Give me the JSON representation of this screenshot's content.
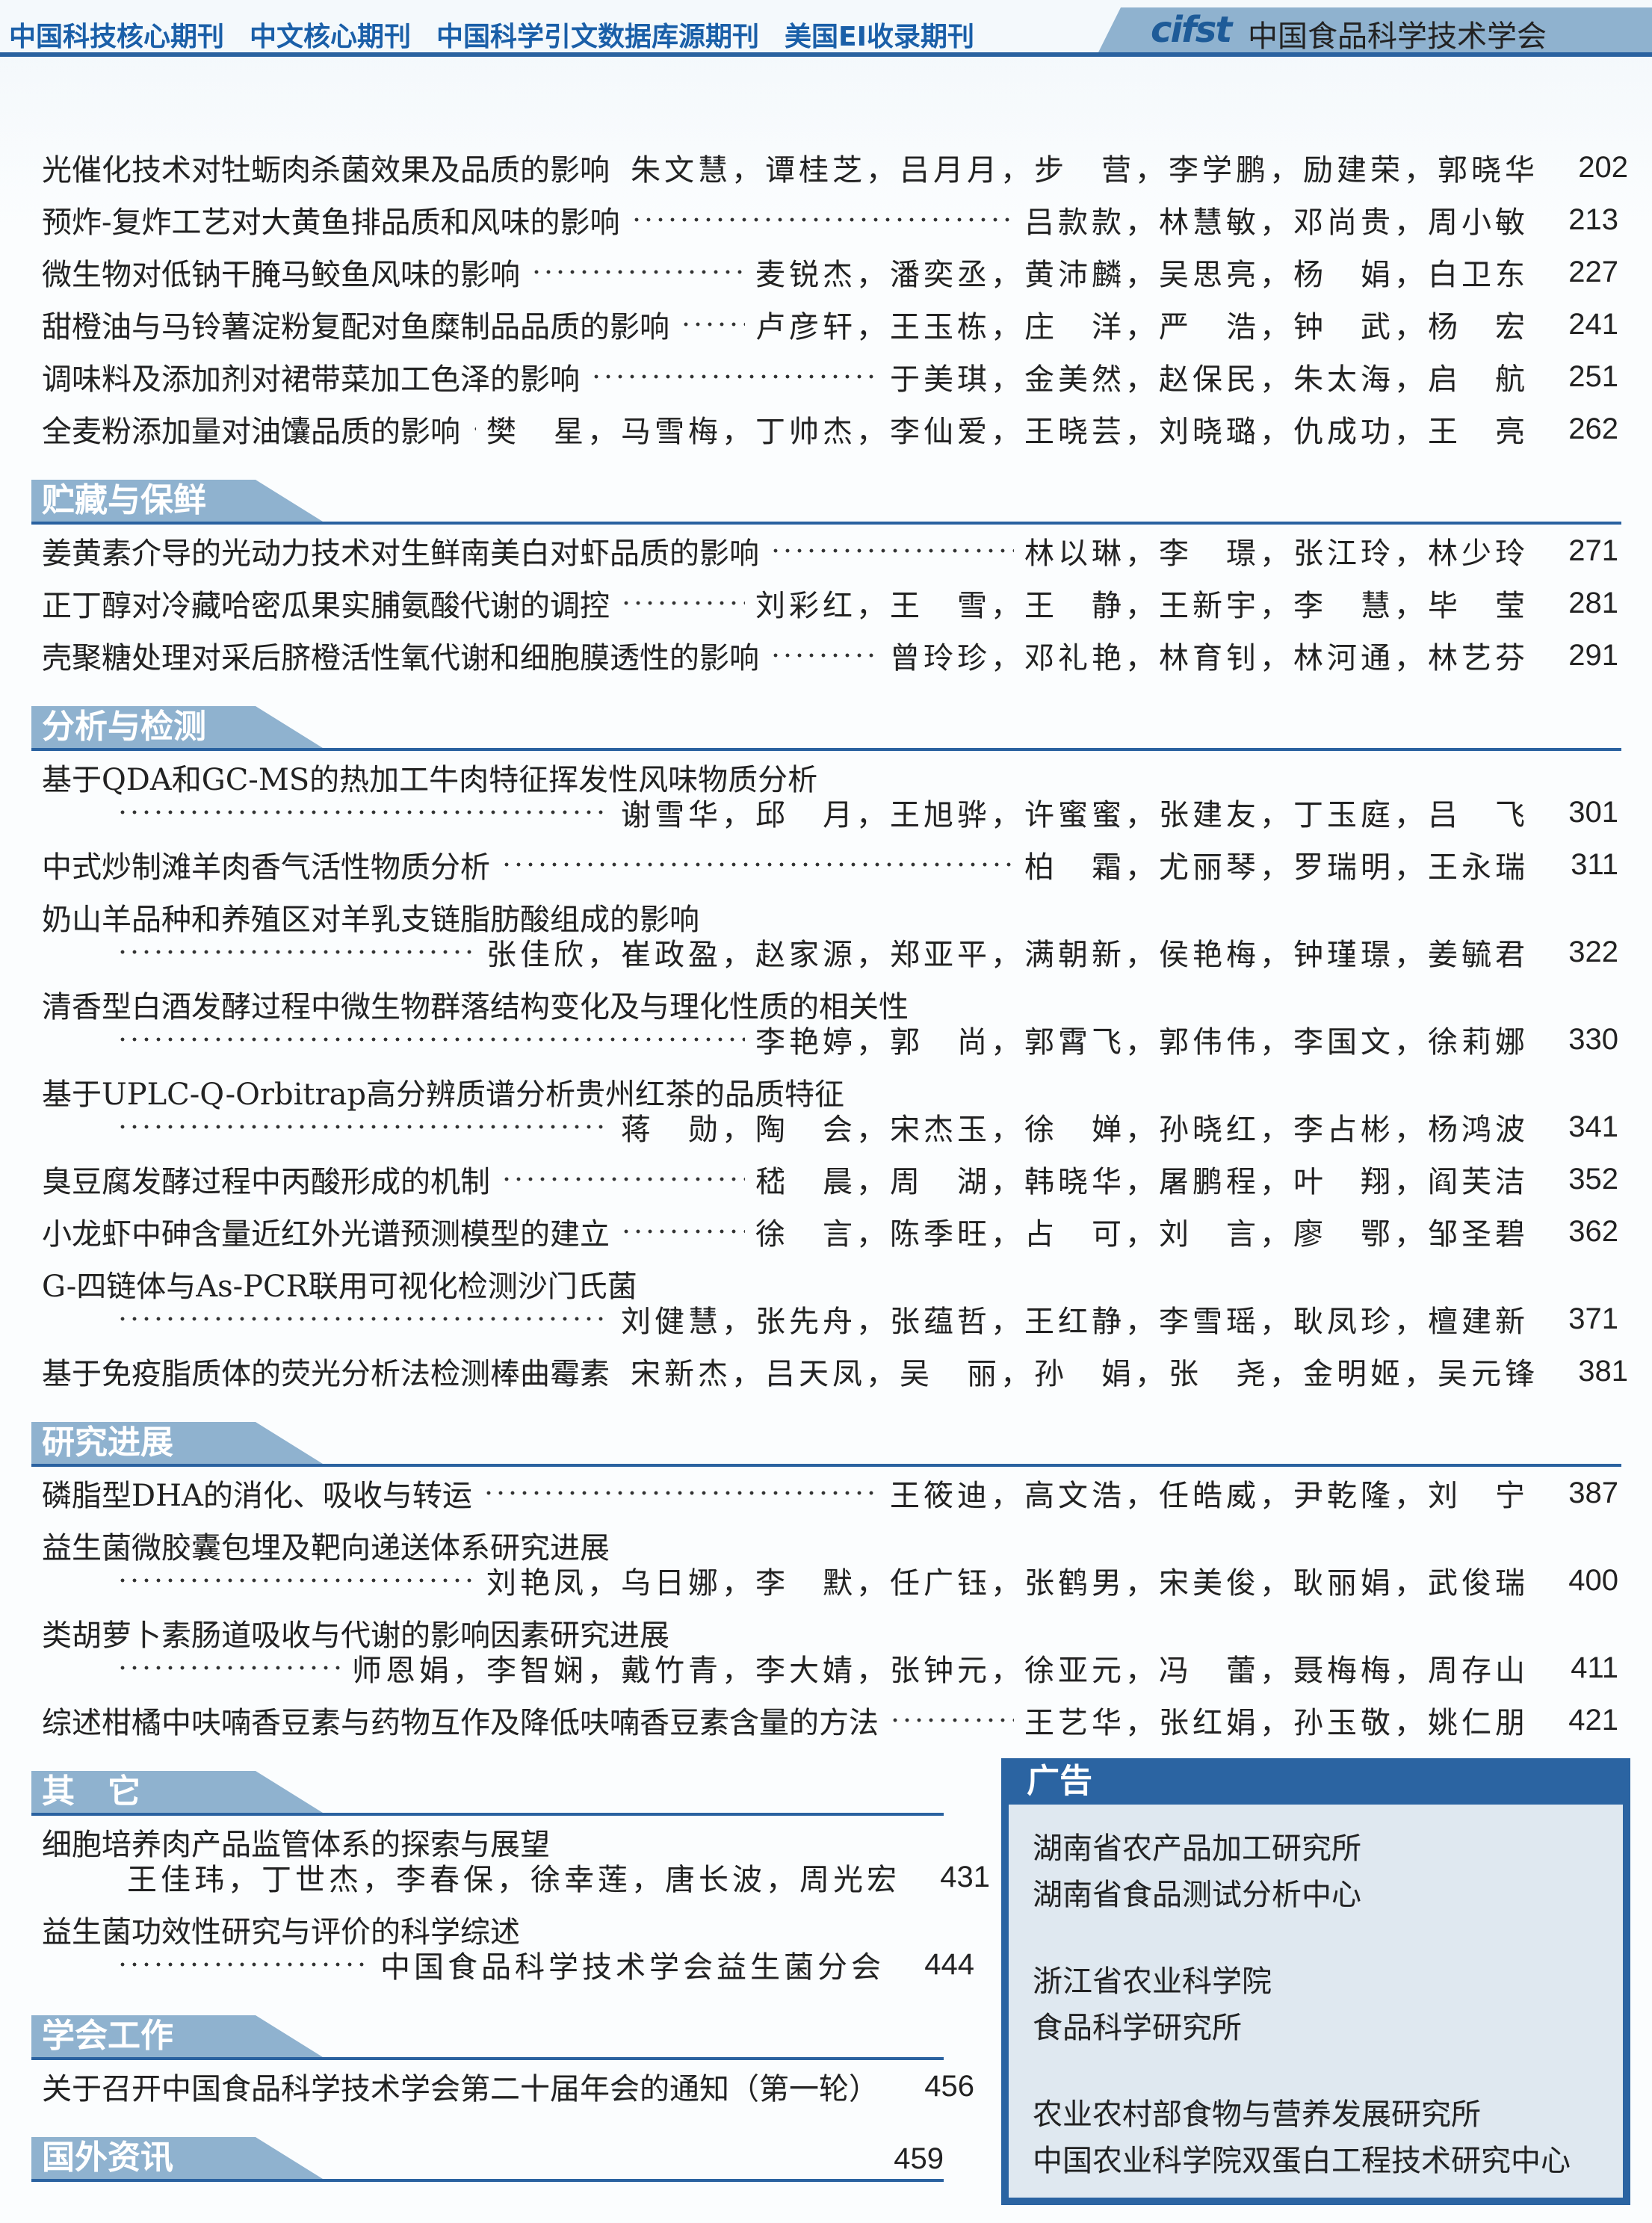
{
  "header": {
    "journals": [
      "中国科技核心期刊",
      "中文核心期刊",
      "中国科学引文数据库源期刊",
      "美国EI收录期刊"
    ],
    "logo": "cifst",
    "society": "中国食品科学技术学会"
  },
  "colors": {
    "accent": "#2a62a0",
    "tab": "#8fb2cf",
    "journal_text": "#1a5fa8"
  },
  "sections": [
    {
      "title": "",
      "entries": [
        {
          "title": "光催化技术对牡蛎肉杀菌效果及品质的影响",
          "authors": "朱文慧，谭桂芝，吕月月，步　营，李学鹏，励建荣，郭晓华",
          "page": "202"
        },
        {
          "title": "预炸-复炸工艺对大黄鱼排品质和风味的影响",
          "authors": "吕款款，林慧敏，邓尚贵，周小敏",
          "page": "213"
        },
        {
          "title": "微生物对低钠干腌马鲛鱼风味的影响",
          "authors": "麦锐杰，潘奕丞，黄沛麟，吴思亮，杨　娟，白卫东",
          "page": "227"
        },
        {
          "title": "甜橙油与马铃薯淀粉复配对鱼糜制品品质的影响",
          "authors": "卢彦轩，王玉栋，庄　洋，严　浩，钟　武，杨　宏",
          "page": "241"
        },
        {
          "title": "调味料及添加剂对裙带菜加工色泽的影响",
          "authors": "于美琪，金美然，赵保民，朱太海，启　航",
          "page": "251"
        },
        {
          "title": "全麦粉添加量对油馕品质的影响",
          "authors": "樊　星，马雪梅，丁帅杰，李仙爱，王晓芸，刘晓璐，仇成功，王　亮",
          "page": "262"
        }
      ]
    },
    {
      "title": "贮藏与保鲜",
      "entries": [
        {
          "title": "姜黄素介导的光动力技术对生鲜南美白对虾品质的影响",
          "authors": "林以琳，李　璟，张江玲，林少玲",
          "page": "271"
        },
        {
          "title": "正丁醇对冷藏哈密瓜果实脯氨酸代谢的调控",
          "authors": "刘彩红，王　雪，王　静，王新宇，李　慧，毕　莹",
          "page": "281"
        },
        {
          "title": "壳聚糖处理对采后脐橙活性氧代谢和细胞膜透性的影响",
          "authors": "曾玲珍，邓礼艳，林育钊，林河通，林艺芬",
          "page": "291"
        }
      ]
    },
    {
      "title": "分析与检测",
      "entries": [
        {
          "title": "基于QDA和GC-MS的热加工牛肉特征挥发性风味物质分析",
          "authors": "谢雪华，邱　月，王旭骅，许蜜蜜，张建友，丁玉庭，吕　飞",
          "page": "301"
        },
        {
          "title": "中式炒制滩羊肉香气活性物质分析",
          "authors": "柏　霜，尤丽琴，罗瑞明，王永瑞",
          "page": "311"
        },
        {
          "title": "奶山羊品种和养殖区对羊乳支链脂肪酸组成的影响",
          "authors": "张佳欣，崔政盈，赵家源，郑亚平，满朝新，侯艳梅，钟瑾璟，姜毓君",
          "page": "322"
        },
        {
          "title": "清香型白酒发酵过程中微生物群落结构变化及与理化性质的相关性",
          "authors": "李艳婷，郭　尚，郭霄飞，郭伟伟，李国文，徐莉娜",
          "page": "330"
        },
        {
          "title": "基于UPLC-Q-Orbitrap高分辨质谱分析贵州红茶的品质特征",
          "authors": "蒋　勋，陶　会，宋杰玉，徐　婵，孙晓红，李占彬，杨鸿波",
          "page": "341"
        },
        {
          "title": "臭豆腐发酵过程中丙酸形成的机制",
          "authors": "嵇　晨，周　湖，韩晓华，屠鹏程，叶　翔，阎芙洁",
          "page": "352"
        },
        {
          "title": "小龙虾中砷含量近红外光谱预测模型的建立",
          "authors": "徐　言，陈季旺，占　可，刘　言，廖　鄂，邹圣碧",
          "page": "362"
        },
        {
          "title": "G-四链体与As-PCR联用可视化检测沙门氏菌",
          "authors": "刘健慧，张先舟，张蕴哲，王红静，李雪瑶，耿凤珍，檀建新",
          "page": "371"
        },
        {
          "title": "基于免疫脂质体的荧光分析法检测棒曲霉素",
          "authors": "宋新杰，吕天凤，吴　丽，孙　娟，张　尧，金明姬，吴元锋",
          "page": "381"
        }
      ]
    },
    {
      "title": "研究进展",
      "entries": [
        {
          "title": "磷脂型DHA的消化、吸收与转运",
          "authors": "王筱迪，高文浩，任皓威，尹乾隆，刘　宁",
          "page": "387"
        },
        {
          "title": "益生菌微胶囊包埋及靶向递送体系研究进展",
          "authors": "刘艳凤，乌日娜，李　默，任广钰，张鹤男，宋美俊，耿丽娟，武俊瑞",
          "page": "400"
        },
        {
          "title": "类胡萝卜素肠道吸收与代谢的影响因素研究进展",
          "authors": "师恩娟，李智娴，戴竹青，李大婧，张钟元，徐亚元，冯　蕾，聂梅梅，周存山",
          "page": "411"
        },
        {
          "title": "综述柑橘中呋喃香豆素与药物互作及降低呋喃香豆素含量的方法",
          "authors": "王艺华，张红娟，孙玉敬，姚仁朋",
          "page": "421"
        }
      ]
    }
  ],
  "left_sections": [
    {
      "title": "其　它",
      "entries": [
        {
          "title": "细胞培养肉产品监管体系的探索与展望",
          "authors": "王佳玮，丁世杰，李春保，徐幸莲，唐长波，周光宏",
          "page": "431"
        },
        {
          "title": "益生菌功效性研究与评价的科学综述",
          "authors": "中国食品科学技术学会益生菌分会",
          "page": "444"
        }
      ]
    },
    {
      "title": "学会工作",
      "entries": [
        {
          "title": "关于召开中国食品科学技术学会第二十届年会的通知（第一轮）",
          "authors": "",
          "page": "456"
        }
      ]
    },
    {
      "title": "国外资讯",
      "page": "459",
      "entries": []
    }
  ],
  "ad": {
    "title": "广告",
    "groups": [
      [
        "湖南省农产品加工研究所",
        "湖南省食品测试分析中心"
      ],
      [
        "浙江省农业科学院",
        "食品科学研究所"
      ],
      [
        "农业农村部食物与营养发展研究所",
        "中国农业科学院双蛋白工程技术研究中心"
      ]
    ]
  }
}
